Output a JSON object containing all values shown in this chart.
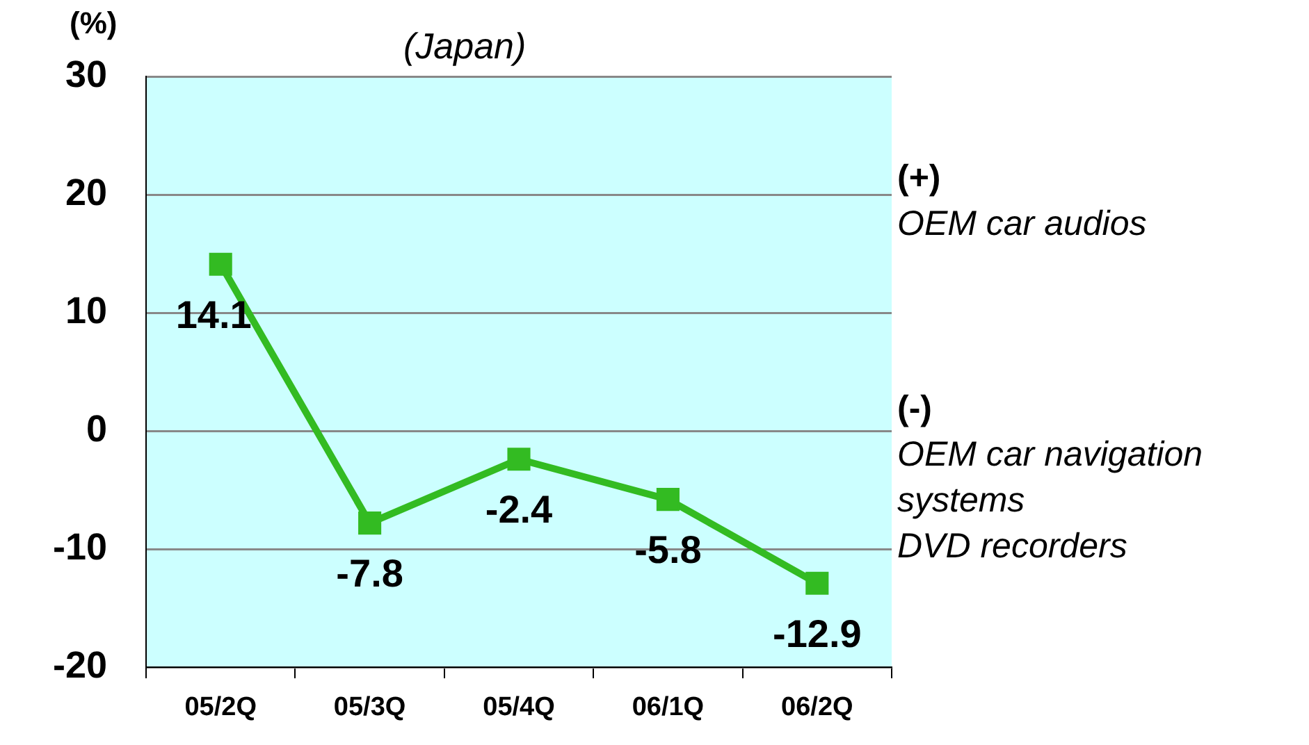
{
  "chart_data": {
    "type": "line",
    "title": "(Japan)",
    "ylabel": "(%)",
    "categories": [
      "05/2Q",
      "05/3Q",
      "05/4Q",
      "06/1Q",
      "06/2Q"
    ],
    "series": [
      {
        "color": "#33bb22",
        "values": [
          14.1,
          -7.8,
          -2.4,
          -5.8,
          -12.9
        ]
      }
    ],
    "ylim": [
      -20,
      30
    ],
    "yticks": [
      -20,
      -10,
      0,
      10,
      20,
      30
    ],
    "grid": "y",
    "legend": false,
    "marker": "square",
    "line_style": "solid",
    "data_labels": true,
    "annotations": [
      "(+)",
      "OEM car audios",
      "(-)",
      "OEM car navigation systems",
      "DVD recorders"
    ]
  }
}
